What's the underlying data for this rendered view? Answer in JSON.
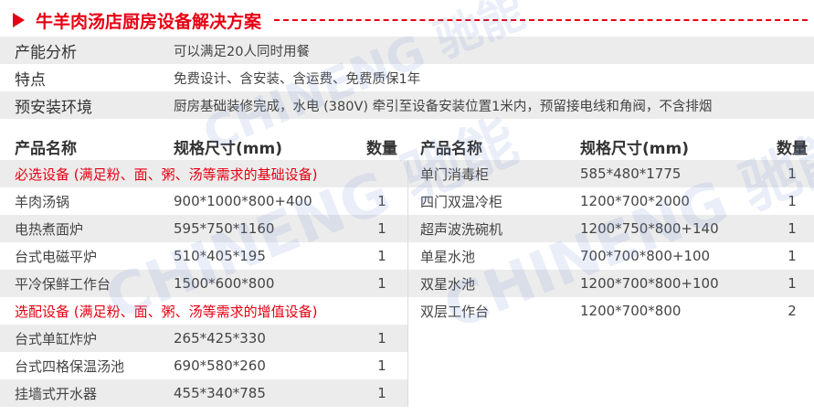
{
  "title": "牛羊肉汤店厨房设备解决方案",
  "info": [
    {
      "label": "产能分析",
      "value": "可以满足20人同时用餐"
    },
    {
      "label": "特点",
      "value": "免费设计、含安装、含运费、免费质保1年"
    },
    {
      "label": "预安装环境",
      "value": "厨房基础装修完成，水电 (380V) 牵引至设备安装位置1米内，预留接电线和角阀，不含排烟"
    }
  ],
  "headers": {
    "name": "产品名称",
    "spec": "规格尺寸(mm)",
    "qty": "数量"
  },
  "left": [
    {
      "section": "必选设备 (满足粉、面、粥、汤等需求的基础设备)"
    },
    {
      "name": "羊肉汤锅",
      "spec": "900*1000*800+400",
      "qty": "1"
    },
    {
      "name": "电热煮面炉",
      "spec": "595*750*1160",
      "qty": "1"
    },
    {
      "name": "台式电磁平炉",
      "spec": "510*405*195",
      "qty": "1"
    },
    {
      "name": "平冷保鲜工作台",
      "spec": "1500*600*800",
      "qty": "1"
    },
    {
      "section": "选配设备 (满足粉、面、粥、汤等需求的增值设备)"
    },
    {
      "name": "台式单缸炸炉",
      "spec": "265*425*330",
      "qty": "1"
    },
    {
      "name": "台式四格保温汤池",
      "spec": "690*580*260",
      "qty": "1"
    },
    {
      "name": "挂墙式开水器",
      "spec": "455*340*785",
      "qty": "1"
    }
  ],
  "right": [
    {
      "name": "单门消毒柜",
      "spec": "585*480*1775",
      "qty": "1"
    },
    {
      "name": "四门双温冷柜",
      "spec": "1200*700*2000",
      "qty": "1"
    },
    {
      "name": "超声波洗碗机",
      "spec": "1200*750*800+140",
      "qty": "1"
    },
    {
      "name": "单星水池",
      "spec": "700*700*800+100",
      "qty": "1"
    },
    {
      "name": "双星水池",
      "spec": "1200*700*800+100",
      "qty": "1"
    },
    {
      "name": "双层工作台",
      "spec": "1200*700*800",
      "qty": "2"
    }
  ],
  "watermark": "CHINENG 驰能",
  "colors": {
    "accent": "#e60012",
    "row_gray": "#ececec"
  }
}
